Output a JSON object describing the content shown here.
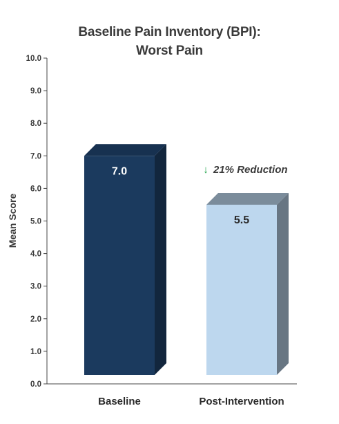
{
  "chart_data": {
    "type": "bar",
    "title_lines": [
      "Baseline Pain Inventory (BPI):",
      "Worst Pain"
    ],
    "xlabel": "",
    "ylabel": "Mean Score",
    "ylim": [
      0,
      10
    ],
    "yticks": [
      "0.0",
      "1.0",
      "2.0",
      "3.0",
      "4.0",
      "5.0",
      "6.0",
      "7.0",
      "8.0",
      "9.0",
      "10.0"
    ],
    "categories": [
      "Baseline",
      "Post-Intervention"
    ],
    "values": [
      7.0,
      5.5
    ],
    "data_labels": [
      "7.0",
      "5.5"
    ],
    "bar_colors": [
      "#1b3a5e",
      "#bdd7ee"
    ],
    "data_label_colors": [
      "#ffffff",
      "#2a2a2a"
    ],
    "grid": false,
    "legend": "none",
    "bar_style": "3d",
    "annotation": {
      "arrow": "↓",
      "text": "21% Reduction",
      "arrow_color": "#1fa34a"
    }
  }
}
